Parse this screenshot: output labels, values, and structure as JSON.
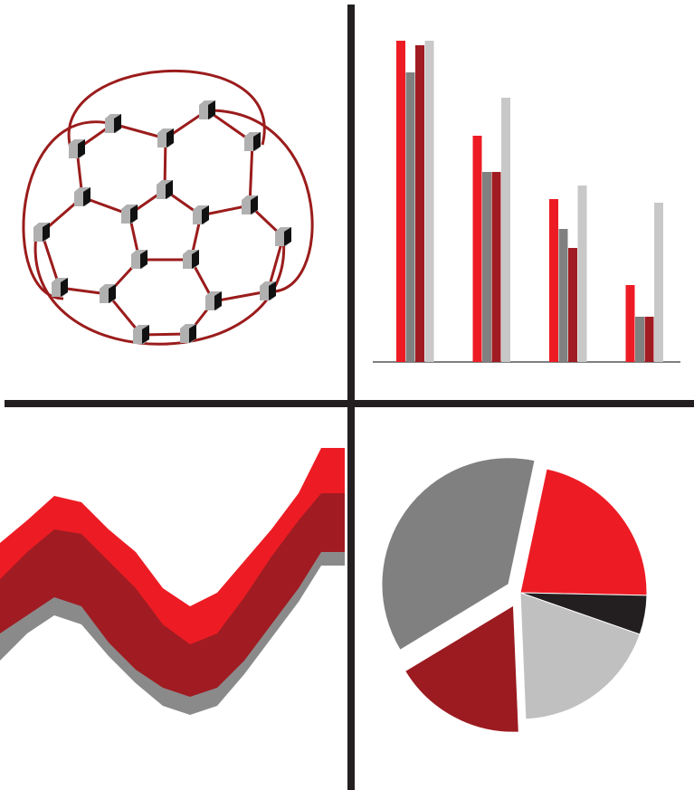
{
  "chart_data": [
    {
      "type": "bar",
      "categories": [
        null,
        null,
        null,
        null
      ],
      "series": [
        {
          "color": "#ed1c24",
          "values": [
            355,
            250,
            180,
            85
          ]
        },
        {
          "color": "#808080",
          "values": [
            320,
            210,
            147,
            50
          ]
        },
        {
          "color": "#a01c22",
          "values": [
            350,
            210,
            126,
            50
          ]
        },
        {
          "color": "#c8c8c8",
          "values": [
            355,
            292,
            195,
            176
          ]
        }
      ],
      "ylim": [
        0,
        360
      ]
    },
    {
      "type": "area",
      "x": [
        0,
        30,
        60,
        90,
        120,
        150,
        180,
        210,
        240,
        270,
        300,
        330,
        355
      ],
      "xlim": [
        0,
        355
      ],
      "ylim": [
        0,
        400
      ],
      "series": [
        {
          "color": "#ed1c24",
          "values": [
            273,
            298,
            325,
            318,
            288,
            263,
            223,
            203,
            218,
            253,
            288,
            328,
            378
          ]
        },
        {
          "color": "#a01c22",
          "values": [
            233,
            263,
            288,
            283,
            253,
            223,
            183,
            161,
            173,
            213,
            258,
            298,
            328
          ]
        },
        {
          "color": "#8a8a8a",
          "values": [
            173,
            193,
            213,
            203,
            163,
            133,
            113,
            103,
            113,
            143,
            183,
            223,
            263
          ]
        },
        {
          "color": "#ffffff",
          "values": [
            143,
            173,
            193,
            183,
            148,
            118,
            93,
            83,
            93,
            128,
            168,
            208,
            248
          ]
        }
      ]
    },
    {
      "type": "pie",
      "values": [
        22,
        5,
        19,
        17,
        37
      ],
      "colors": [
        "#ed1c24",
        "#231f20",
        "#c0c0c0",
        "#9b1b20",
        "#808080"
      ],
      "exploded": [
        false,
        false,
        false,
        true,
        true
      ]
    }
  ]
}
